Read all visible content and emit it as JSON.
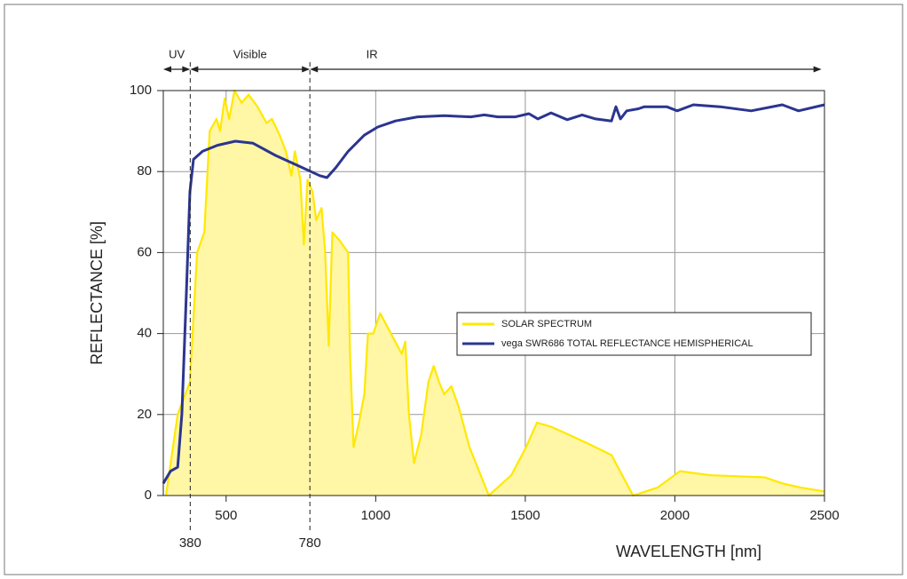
{
  "chart_data": {
    "type": "line",
    "xlabel": "WAVELENGTH [nm]",
    "ylabel": "REFLECTANCE [%]",
    "xlim": [
      290,
      2500
    ],
    "ylim": [
      0,
      100
    ],
    "xticks": [
      500,
      1000,
      1500,
      2000,
      2500
    ],
    "yticks": [
      0,
      20,
      40,
      60,
      80,
      100
    ],
    "grid": true,
    "markers": [
      380,
      780
    ],
    "regions": [
      {
        "label": "UV",
        "from": 290,
        "to": 380
      },
      {
        "label": "Visible",
        "from": 380,
        "to": 780
      },
      {
        "label": "IR",
        "from": 780,
        "to": 2490
      }
    ],
    "series": [
      {
        "name": "SOLAR SPECTRUM",
        "color": "#ffe800",
        "fill": "#fff6a6",
        "x": [
          299,
          338,
          379,
          403,
          427,
          445,
          468,
          480,
          495,
          510,
          528,
          552,
          575,
          605,
          635,
          653,
          679,
          700,
          718,
          730,
          748,
          760,
          772,
          789,
          801,
          819,
          831,
          843,
          855,
          879,
          908,
          914,
          926,
          944,
          962,
          974,
          992,
          1015,
          1051,
          1087,
          1099,
          1111,
          1128,
          1152,
          1176,
          1194,
          1212,
          1229,
          1253,
          1277,
          1313,
          1378,
          1423,
          1453,
          1503,
          1539,
          1586,
          1646,
          1705,
          1788,
          1860,
          1943,
          2017,
          2121,
          2300,
          2359,
          2419,
          2500
        ],
        "values": [
          0,
          20,
          28,
          60,
          65,
          90,
          93,
          90,
          98,
          93,
          100,
          97,
          99,
          96,
          92,
          93,
          89,
          85,
          79,
          85,
          78,
          62,
          78,
          75,
          68,
          71,
          60,
          37,
          65,
          63,
          60,
          35,
          12,
          18,
          25,
          40,
          40,
          45,
          40,
          35,
          38,
          20,
          8,
          15,
          28,
          32,
          28,
          25,
          27,
          22,
          12,
          0,
          3,
          5,
          12,
          18,
          17,
          15,
          13,
          10,
          0,
          2,
          6,
          5,
          4.5,
          3,
          2,
          1
        ]
      },
      {
        "name": "vega SWR686 TOTAL REFLECTANCE HEMISPHERICAL",
        "color": "#2b3590",
        "x": [
          290,
          314,
          338,
          352,
          367,
          379,
          391,
          421,
          471,
          531,
          590,
          665,
          754,
          813,
          837,
          867,
          908,
          962,
          1007,
          1066,
          1140,
          1229,
          1318,
          1363,
          1408,
          1467,
          1512,
          1542,
          1586,
          1640,
          1690,
          1735,
          1788,
          1803,
          1818,
          1839,
          1878,
          1898,
          1973,
          2008,
          2062,
          2151,
          2255,
          2359,
          2413,
          2500
        ],
        "values": [
          3,
          6,
          7,
          20,
          50,
          75,
          83,
          85,
          86.5,
          87.5,
          87,
          84,
          81,
          79,
          78.5,
          81,
          85,
          89,
          91,
          92.5,
          93.5,
          93.8,
          93.5,
          94,
          93.5,
          93.5,
          94.3,
          93,
          94.5,
          92.8,
          94,
          93,
          92.5,
          96,
          93,
          95,
          95.5,
          96,
          96,
          95,
          96.5,
          96,
          95,
          96.5,
          95,
          96.5
        ]
      }
    ]
  }
}
